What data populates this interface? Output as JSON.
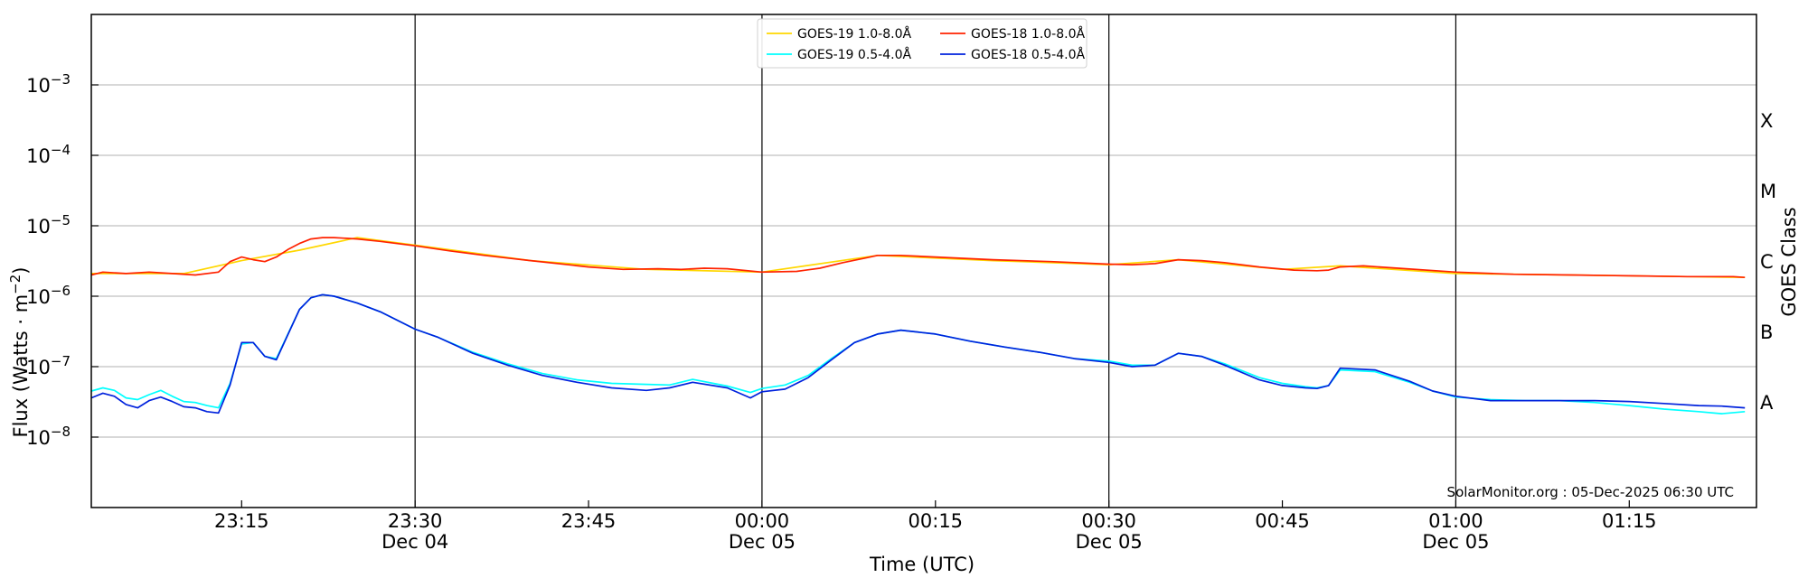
{
  "chart_data": {
    "type": "line",
    "ylabel": "Flux (Watts · m",
    "ylabel_sup": "−2",
    "ylabel_close": ")",
    "xlabel": "Time (UTC)",
    "right_axis_label": "GOES Class",
    "y_scale": "log",
    "ylim": [
      1e-09,
      0.01
    ],
    "y_ticks": [
      {
        "value": 1e-08,
        "base": "10",
        "exp": "−8"
      },
      {
        "value": 1e-07,
        "base": "10",
        "exp": "−7"
      },
      {
        "value": 1e-06,
        "base": "10",
        "exp": "−6"
      },
      {
        "value": 1e-05,
        "base": "10",
        "exp": "−5"
      },
      {
        "value": 0.0001,
        "base": "10",
        "exp": "−4"
      },
      {
        "value": 0.001,
        "base": "10",
        "exp": "−3"
      }
    ],
    "xlim": [
      "2025-12-04T23:02:00Z",
      "2025-12-05T01:26:00Z"
    ],
    "x_ticks": [
      {
        "time": "2025-12-04T23:15:00Z",
        "label": "23:15",
        "sublabel": "",
        "vline": false
      },
      {
        "time": "2025-12-04T23:30:00Z",
        "label": "23:30",
        "sublabel": "Dec 04",
        "vline": true
      },
      {
        "time": "2025-12-04T23:45:00Z",
        "label": "23:45",
        "sublabel": "",
        "vline": false
      },
      {
        "time": "2025-12-05T00:00:00Z",
        "label": "00:00",
        "sublabel": "Dec 05",
        "vline": true
      },
      {
        "time": "2025-12-05T00:15:00Z",
        "label": "00:15",
        "sublabel": "",
        "vline": false
      },
      {
        "time": "2025-12-05T00:30:00Z",
        "label": "00:30",
        "sublabel": "Dec 05",
        "vline": true
      },
      {
        "time": "2025-12-05T00:45:00Z",
        "label": "00:45",
        "sublabel": "",
        "vline": false
      },
      {
        "time": "2025-12-05T01:00:00Z",
        "label": "01:00",
        "sublabel": "Dec 05",
        "vline": true
      },
      {
        "time": "2025-12-05T01:15:00Z",
        "label": "01:15",
        "sublabel": "",
        "vline": false
      }
    ],
    "grid": {
      "horizontal": true,
      "vertical_at_labeled_ticks": true
    },
    "goes_classes": [
      {
        "label": "A",
        "value": 3.16e-08
      },
      {
        "label": "B",
        "value": 3.16e-07
      },
      {
        "label": "C",
        "value": 3.16e-06
      },
      {
        "label": "M",
        "value": 3.16e-05
      },
      {
        "label": "X",
        "value": 0.000316
      }
    ],
    "legend": {
      "placement": "top-center",
      "entries": [
        {
          "name": "GOES-19 1.0-8.0Å",
          "color": "#ffd700"
        },
        {
          "name": "GOES-19 0.5-4.0Å",
          "color": "#00ffff"
        },
        {
          "name": "GOES-18 1.0-8.0Å",
          "color": "#ff2200"
        },
        {
          "name": "GOES-18 0.5-4.0Å",
          "color": "#0022dd"
        }
      ]
    },
    "series": [
      {
        "name": "GOES-19 1.0-8.0Å",
        "color": "#ffd700",
        "x": [
          "2025-12-04T23:02:00Z",
          "2025-12-04T23:10:00Z",
          "2025-12-04T23:15:00Z",
          "2025-12-04T23:20:00Z",
          "2025-12-04T23:25:00Z",
          "2025-12-04T23:30:00Z",
          "2025-12-04T23:40:00Z",
          "2025-12-04T23:50:00Z",
          "2025-12-05T00:00:00Z",
          "2025-12-05T00:10:00Z",
          "2025-12-05T00:20:00Z",
          "2025-12-05T00:30:00Z",
          "2025-12-05T00:36:00Z",
          "2025-12-05T00:45:00Z",
          "2025-12-05T00:50:00Z",
          "2025-12-05T01:00:00Z",
          "2025-12-05T01:10:00Z",
          "2025-12-05T01:20:00Z",
          "2025-12-05T01:25:00Z"
        ],
        "values": [
          2.1e-06,
          2.1e-06,
          3.2e-06,
          4.5e-06,
          6.8e-06,
          5.3e-06,
          3.2e-06,
          2.4e-06,
          2.2e-06,
          3.8e-06,
          3.2e-06,
          2.8e-06,
          3.3e-06,
          2.4e-06,
          2.7e-06,
          2.1e-06,
          2e-06,
          1.9e-06,
          1.85e-06
        ]
      },
      {
        "name": "GOES-18 1.0-8.0Å",
        "color": "#ff2200",
        "x": [
          "2025-12-04T23:02:00Z",
          "2025-12-04T23:03:00Z",
          "2025-12-04T23:05:00Z",
          "2025-12-04T23:07:00Z",
          "2025-12-04T23:09:00Z",
          "2025-12-04T23:11:00Z",
          "2025-12-04T23:13:00Z",
          "2025-12-04T23:14:00Z",
          "2025-12-04T23:15:00Z",
          "2025-12-04T23:16:00Z",
          "2025-12-04T23:17:00Z",
          "2025-12-04T23:18:00Z",
          "2025-12-04T23:19:00Z",
          "2025-12-04T23:20:00Z",
          "2025-12-04T23:21:00Z",
          "2025-12-04T23:22:00Z",
          "2025-12-04T23:23:00Z",
          "2025-12-04T23:25:00Z",
          "2025-12-04T23:27:00Z",
          "2025-12-04T23:30:00Z",
          "2025-12-04T23:33:00Z",
          "2025-12-04T23:36:00Z",
          "2025-12-04T23:40:00Z",
          "2025-12-04T23:45:00Z",
          "2025-12-04T23:48:00Z",
          "2025-12-04T23:51:00Z",
          "2025-12-04T23:53:00Z",
          "2025-12-04T23:55:00Z",
          "2025-12-04T23:57:00Z",
          "2025-12-05T00:00:00Z",
          "2025-12-05T00:03:00Z",
          "2025-12-05T00:05:00Z",
          "2025-12-05T00:07:00Z",
          "2025-12-05T00:09:00Z",
          "2025-12-05T00:10:00Z",
          "2025-12-05T00:12:00Z",
          "2025-12-05T00:15:00Z",
          "2025-12-05T00:20:00Z",
          "2025-12-05T00:25:00Z",
          "2025-12-05T00:30:00Z",
          "2025-12-05T00:32:00Z",
          "2025-12-05T00:34:00Z",
          "2025-12-05T00:36:00Z",
          "2025-12-05T00:38:00Z",
          "2025-12-05T00:40:00Z",
          "2025-12-05T00:43:00Z",
          "2025-12-05T00:46:00Z",
          "2025-12-05T00:48:00Z",
          "2025-12-05T00:49:00Z",
          "2025-12-05T00:50:00Z",
          "2025-12-05T00:52:00Z",
          "2025-12-05T00:55:00Z",
          "2025-12-05T01:00:00Z",
          "2025-12-05T01:05:00Z",
          "2025-12-05T01:10:00Z",
          "2025-12-05T01:15:00Z",
          "2025-12-05T01:20:00Z",
          "2025-12-05T01:24:00Z",
          "2025-12-05T01:25:00Z"
        ],
        "values": [
          2e-06,
          2.2e-06,
          2.1e-06,
          2.2e-06,
          2.1e-06,
          2e-06,
          2.2e-06,
          3.1e-06,
          3.6e-06,
          3.3e-06,
          3.1e-06,
          3.6e-06,
          4.6e-06,
          5.6e-06,
          6.5e-06,
          6.8e-06,
          6.8e-06,
          6.5e-06,
          6e-06,
          5.2e-06,
          4.4e-06,
          3.8e-06,
          3.2e-06,
          2.6e-06,
          2.4e-06,
          2.45e-06,
          2.4e-06,
          2.5e-06,
          2.45e-06,
          2.2e-06,
          2.25e-06,
          2.5e-06,
          3e-06,
          3.5e-06,
          3.8e-06,
          3.8e-06,
          3.6e-06,
          3.3e-06,
          3.1e-06,
          2.85e-06,
          2.8e-06,
          2.9e-06,
          3.3e-06,
          3.2e-06,
          3e-06,
          2.6e-06,
          2.35e-06,
          2.3e-06,
          2.35e-06,
          2.6e-06,
          2.7e-06,
          2.5e-06,
          2.2e-06,
          2.05e-06,
          2e-06,
          1.95e-06,
          1.9e-06,
          1.9e-06,
          1.85e-06
        ]
      },
      {
        "name": "GOES-19 0.5-4.0Å",
        "color": "#00ffff",
        "x": [
          "2025-12-04T23:02:00Z",
          "2025-12-04T23:03:00Z",
          "2025-12-04T23:04:00Z",
          "2025-12-04T23:05:00Z",
          "2025-12-04T23:06:00Z",
          "2025-12-04T23:07:00Z",
          "2025-12-04T23:08:00Z",
          "2025-12-04T23:09:00Z",
          "2025-12-04T23:10:00Z",
          "2025-12-04T23:11:00Z",
          "2025-12-04T23:12:00Z",
          "2025-12-04T23:13:00Z",
          "2025-12-04T23:14:00Z",
          "2025-12-04T23:15:00Z",
          "2025-12-04T23:16:00Z",
          "2025-12-04T23:17:00Z",
          "2025-12-04T23:18:00Z",
          "2025-12-04T23:20:00Z",
          "2025-12-04T23:21:00Z",
          "2025-12-04T23:22:00Z",
          "2025-12-04T23:23:00Z",
          "2025-12-04T23:25:00Z",
          "2025-12-04T23:27:00Z",
          "2025-12-04T23:30:00Z",
          "2025-12-04T23:32:00Z",
          "2025-12-04T23:35:00Z",
          "2025-12-04T23:38:00Z",
          "2025-12-04T23:41:00Z",
          "2025-12-04T23:44:00Z",
          "2025-12-04T23:47:00Z",
          "2025-12-04T23:50:00Z",
          "2025-12-04T23:52:00Z",
          "2025-12-04T23:54:00Z",
          "2025-12-04T23:57:00Z",
          "2025-12-04T23:59:00Z",
          "2025-12-05T00:00:00Z",
          "2025-12-05T00:02:00Z",
          "2025-12-05T00:04:00Z",
          "2025-12-05T00:06:00Z",
          "2025-12-05T00:08:00Z",
          "2025-12-05T00:10:00Z",
          "2025-12-05T00:12:00Z",
          "2025-12-05T00:15:00Z",
          "2025-12-05T00:18:00Z",
          "2025-12-05T00:21:00Z",
          "2025-12-05T00:24:00Z",
          "2025-12-05T00:27:00Z",
          "2025-12-05T00:30:00Z",
          "2025-12-05T00:32:00Z",
          "2025-12-05T00:34:00Z",
          "2025-12-05T00:36:00Z",
          "2025-12-05T00:38:00Z",
          "2025-12-05T00:40:00Z",
          "2025-12-05T00:43:00Z",
          "2025-12-05T00:45:00Z",
          "2025-12-05T00:47:00Z",
          "2025-12-05T00:48:00Z",
          "2025-12-05T00:49:00Z",
          "2025-12-05T00:50:00Z",
          "2025-12-05T00:53:00Z",
          "2025-12-05T00:56:00Z",
          "2025-12-05T00:58:00Z",
          "2025-12-05T01:00:00Z",
          "2025-12-05T01:03:00Z",
          "2025-12-05T01:06:00Z",
          "2025-12-05T01:09:00Z",
          "2025-12-05T01:12:00Z",
          "2025-12-05T01:15:00Z",
          "2025-12-05T01:18:00Z",
          "2025-12-05T01:21:00Z",
          "2025-12-05T01:23:00Z",
          "2025-12-05T01:25:00Z"
        ],
        "values": [
          4.5e-08,
          5e-08,
          4.6e-08,
          3.6e-08,
          3.4e-08,
          4e-08,
          4.6e-08,
          3.8e-08,
          3.2e-08,
          3.1e-08,
          2.8e-08,
          2.6e-08,
          5.8e-08,
          2.1e-07,
          2.2e-07,
          1.4e-07,
          1.3e-07,
          6.5e-07,
          9.5e-07,
          1.05e-06,
          1e-06,
          8e-07,
          6e-07,
          3.4e-07,
          2.6e-07,
          1.6e-07,
          1.1e-07,
          8e-08,
          6.5e-08,
          5.8e-08,
          5.6e-08,
          5.5e-08,
          6.6e-08,
          5.3e-08,
          4.3e-08,
          4.9e-08,
          5.5e-08,
          7.5e-08,
          1.3e-07,
          2.2e-07,
          2.9e-07,
          3.3e-07,
          2.9e-07,
          2.3e-07,
          1.9e-07,
          1.6e-07,
          1.3e-07,
          1.2e-07,
          1.05e-07,
          1.05e-07,
          1.55e-07,
          1.4e-07,
          1.1e-07,
          7e-08,
          5.8e-08,
          5.2e-08,
          5e-08,
          5.4e-08,
          9e-08,
          8.5e-08,
          6e-08,
          4.5e-08,
          3.7e-08,
          3.4e-08,
          3.3e-08,
          3.3e-08,
          3.1e-08,
          2.8e-08,
          2.5e-08,
          2.3e-08,
          2.15e-08,
          2.3e-08
        ]
      },
      {
        "name": "GOES-18 0.5-4.0Å",
        "color": "#0022dd",
        "x": [
          "2025-12-04T23:02:00Z",
          "2025-12-04T23:03:00Z",
          "2025-12-04T23:04:00Z",
          "2025-12-04T23:05:00Z",
          "2025-12-04T23:06:00Z",
          "2025-12-04T23:07:00Z",
          "2025-12-04T23:08:00Z",
          "2025-12-04T23:09:00Z",
          "2025-12-04T23:10:00Z",
          "2025-12-04T23:11:00Z",
          "2025-12-04T23:12:00Z",
          "2025-12-04T23:13:00Z",
          "2025-12-04T23:14:00Z",
          "2025-12-04T23:15:00Z",
          "2025-12-04T23:16:00Z",
          "2025-12-04T23:17:00Z",
          "2025-12-04T23:18:00Z",
          "2025-12-04T23:20:00Z",
          "2025-12-04T23:21:00Z",
          "2025-12-04T23:22:00Z",
          "2025-12-04T23:23:00Z",
          "2025-12-04T23:25:00Z",
          "2025-12-04T23:27:00Z",
          "2025-12-04T23:30:00Z",
          "2025-12-04T23:32:00Z",
          "2025-12-04T23:35:00Z",
          "2025-12-04T23:38:00Z",
          "2025-12-04T23:41:00Z",
          "2025-12-04T23:44:00Z",
          "2025-12-04T23:47:00Z",
          "2025-12-04T23:50:00Z",
          "2025-12-04T23:52:00Z",
          "2025-12-04T23:54:00Z",
          "2025-12-04T23:57:00Z",
          "2025-12-04T23:59:00Z",
          "2025-12-05T00:00:00Z",
          "2025-12-05T00:02:00Z",
          "2025-12-05T00:04:00Z",
          "2025-12-05T00:06:00Z",
          "2025-12-05T00:08:00Z",
          "2025-12-05T00:10:00Z",
          "2025-12-05T00:12:00Z",
          "2025-12-05T00:15:00Z",
          "2025-12-05T00:18:00Z",
          "2025-12-05T00:21:00Z",
          "2025-12-05T00:24:00Z",
          "2025-12-05T00:27:00Z",
          "2025-12-05T00:30:00Z",
          "2025-12-05T00:32:00Z",
          "2025-12-05T00:34:00Z",
          "2025-12-05T00:36:00Z",
          "2025-12-05T00:38:00Z",
          "2025-12-05T00:40:00Z",
          "2025-12-05T00:43:00Z",
          "2025-12-05T00:45:00Z",
          "2025-12-05T00:47:00Z",
          "2025-12-05T00:48:00Z",
          "2025-12-05T00:49:00Z",
          "2025-12-05T00:50:00Z",
          "2025-12-05T00:53:00Z",
          "2025-12-05T00:56:00Z",
          "2025-12-05T00:58:00Z",
          "2025-12-05T01:00:00Z",
          "2025-12-05T01:03:00Z",
          "2025-12-05T01:06:00Z",
          "2025-12-05T01:09:00Z",
          "2025-12-05T01:12:00Z",
          "2025-12-05T01:15:00Z",
          "2025-12-05T01:18:00Z",
          "2025-12-05T01:21:00Z",
          "2025-12-05T01:23:00Z",
          "2025-12-05T01:25:00Z"
        ],
        "values": [
          3.6e-08,
          4.2e-08,
          3.8e-08,
          2.9e-08,
          2.6e-08,
          3.3e-08,
          3.7e-08,
          3.2e-08,
          2.7e-08,
          2.6e-08,
          2.3e-08,
          2.2e-08,
          5.5e-08,
          2.2e-07,
          2.2e-07,
          1.4e-07,
          1.25e-07,
          6.5e-07,
          9.5e-07,
          1.05e-06,
          1e-06,
          8e-07,
          6e-07,
          3.4e-07,
          2.6e-07,
          1.55e-07,
          1.05e-07,
          7.5e-08,
          6e-08,
          5e-08,
          4.6e-08,
          5e-08,
          6e-08,
          5e-08,
          3.6e-08,
          4.4e-08,
          4.8e-08,
          7e-08,
          1.25e-07,
          2.2e-07,
          2.9e-07,
          3.3e-07,
          2.9e-07,
          2.3e-07,
          1.9e-07,
          1.6e-07,
          1.3e-07,
          1.15e-07,
          1e-07,
          1.05e-07,
          1.55e-07,
          1.4e-07,
          1.05e-07,
          6.5e-08,
          5.4e-08,
          5e-08,
          4.9e-08,
          5.4e-08,
          9.5e-08,
          9e-08,
          6.2e-08,
          4.5e-08,
          3.8e-08,
          3.3e-08,
          3.3e-08,
          3.3e-08,
          3.3e-08,
          3.2e-08,
          3e-08,
          2.8e-08,
          2.75e-08,
          2.6e-08
        ]
      }
    ],
    "annotation": "SolarMonitor.org : 05-Dec-2025 06:30 UTC"
  }
}
